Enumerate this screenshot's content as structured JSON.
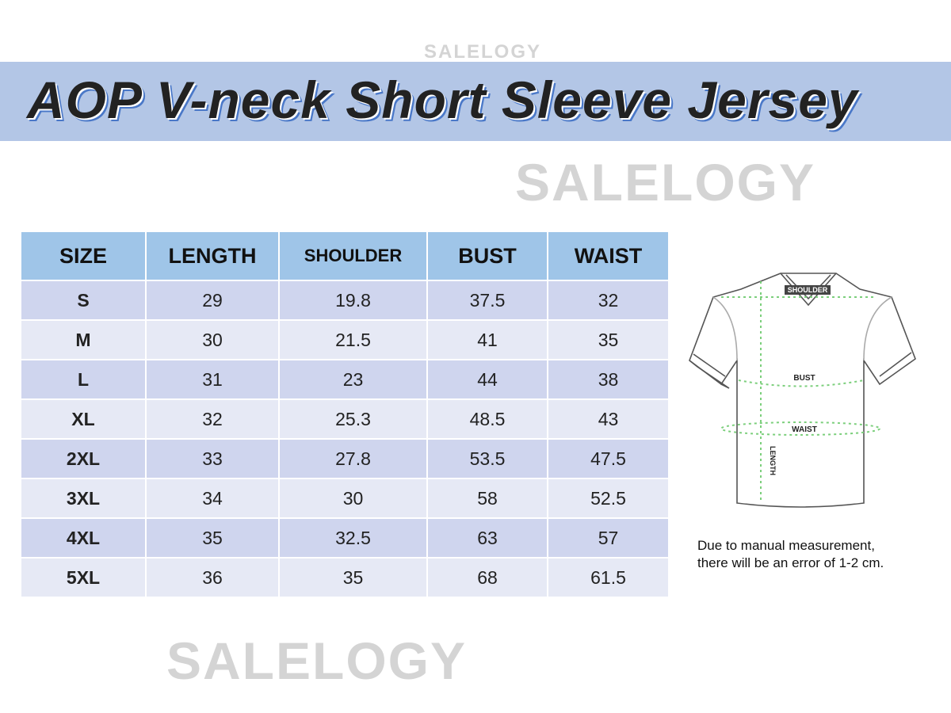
{
  "watermark": "SALELOGY",
  "title": "AOP V-neck Short Sleeve Jersey",
  "table": {
    "headers": [
      "SIZE",
      "LENGTH",
      "SHOULDER",
      "BUST",
      "WAIST"
    ],
    "rows": [
      [
        "S",
        "29",
        "19.8",
        "37.5",
        "32"
      ],
      [
        "M",
        "30",
        "21.5",
        "41",
        "35"
      ],
      [
        "L",
        "31",
        "23",
        "44",
        "38"
      ],
      [
        "XL",
        "32",
        "25.3",
        "48.5",
        "43"
      ],
      [
        "2XL",
        "33",
        "27.8",
        "53.5",
        "47.5"
      ],
      [
        "3XL",
        "34",
        "30",
        "58",
        "52.5"
      ],
      [
        "4XL",
        "35",
        "32.5",
        "63",
        "57"
      ],
      [
        "5XL",
        "36",
        "35",
        "68",
        "61.5"
      ]
    ]
  },
  "diagram": {
    "labels": {
      "shoulder": "SHOULDER",
      "bust": "BUST",
      "waist": "WAIST",
      "length": "LENGTH"
    },
    "measure_color": "#7ccf7c"
  },
  "note": {
    "line1": "Due to manual measurement,",
    "line2": "there will be an error of 1-2 cm."
  },
  "colors": {
    "banner": "#b3c6e6",
    "header": "#9fc5e8",
    "row_odd": "#cfd5ee",
    "row_even": "#e6e9f5"
  }
}
